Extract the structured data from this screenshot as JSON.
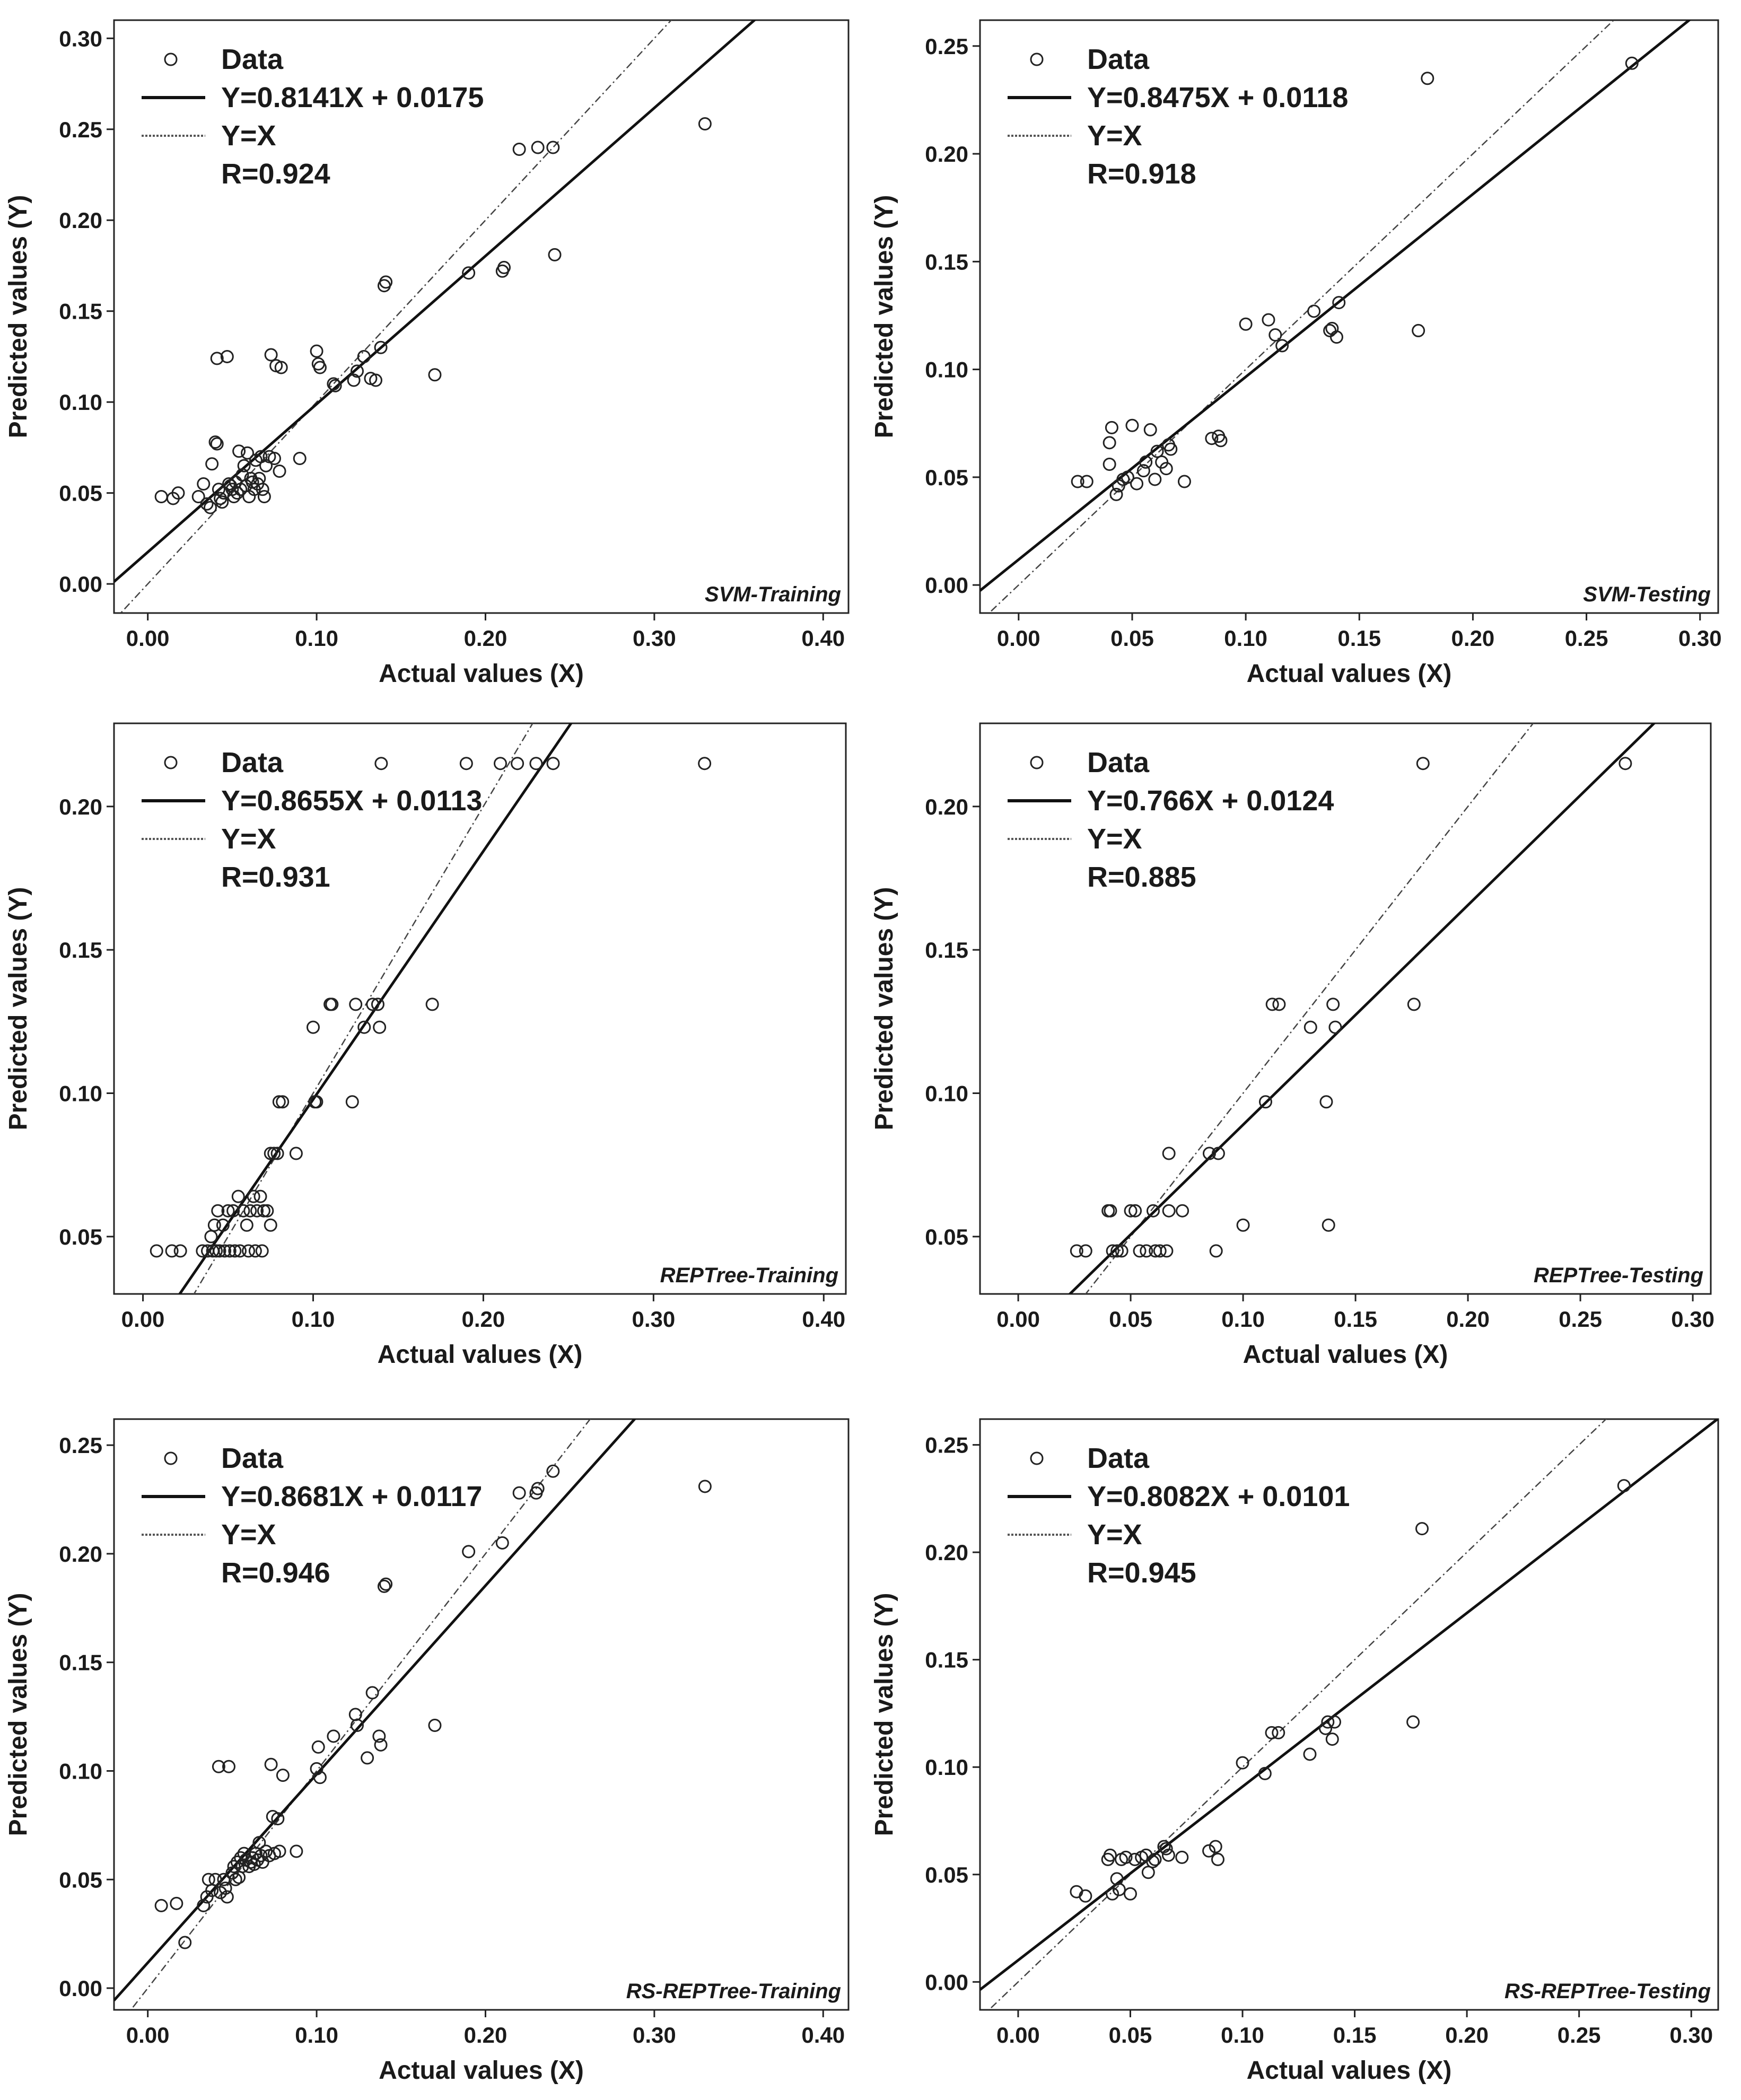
{
  "chart_data": [
    {
      "type": "scatter",
      "title": "SVM-Training",
      "xlabel": "Actual values (X)",
      "ylabel": "Predicted values (Y)",
      "xlim": [
        -0.02,
        0.415
      ],
      "ylim": [
        -0.016,
        0.31
      ],
      "xticks": [
        0.0,
        0.1,
        0.2,
        0.3,
        0.4
      ],
      "yticks": [
        0.0,
        0.05,
        0.1,
        0.15,
        0.2,
        0.25,
        0.3
      ],
      "fit": {
        "slope": 0.8141,
        "intercept": 0.0175
      },
      "legend": {
        "data": "Data",
        "fit": "Y=0.8141X + 0.0175",
        "identity": "Y=X",
        "r": "R=0.924"
      },
      "points": [
        [
          0.008,
          0.048
        ],
        [
          0.015,
          0.047
        ],
        [
          0.018,
          0.05
        ],
        [
          0.03,
          0.048
        ],
        [
          0.033,
          0.055
        ],
        [
          0.035,
          0.044
        ],
        [
          0.037,
          0.042
        ],
        [
          0.038,
          0.066
        ],
        [
          0.04,
          0.078
        ],
        [
          0.041,
          0.077
        ],
        [
          0.041,
          0.124
        ],
        [
          0.042,
          0.052
        ],
        [
          0.043,
          0.047
        ],
        [
          0.044,
          0.045
        ],
        [
          0.045,
          0.05
        ],
        [
          0.047,
          0.125
        ],
        [
          0.048,
          0.055
        ],
        [
          0.049,
          0.054
        ],
        [
          0.05,
          0.052
        ],
        [
          0.051,
          0.048
        ],
        [
          0.052,
          0.056
        ],
        [
          0.053,
          0.05
        ],
        [
          0.054,
          0.073
        ],
        [
          0.055,
          0.052
        ],
        [
          0.056,
          0.06
        ],
        [
          0.057,
          0.065
        ],
        [
          0.058,
          0.054
        ],
        [
          0.059,
          0.072
        ],
        [
          0.06,
          0.048
        ],
        [
          0.061,
          0.058
        ],
        [
          0.062,
          0.056
        ],
        [
          0.063,
          0.052
        ],
        [
          0.064,
          0.068
        ],
        [
          0.065,
          0.055
        ],
        [
          0.066,
          0.058
        ],
        [
          0.067,
          0.07
        ],
        [
          0.068,
          0.052
        ],
        [
          0.069,
          0.048
        ],
        [
          0.07,
          0.065
        ],
        [
          0.072,
          0.07
        ],
        [
          0.073,
          0.126
        ],
        [
          0.075,
          0.069
        ],
        [
          0.076,
          0.12
        ],
        [
          0.078,
          0.062
        ],
        [
          0.079,
          0.119
        ],
        [
          0.09,
          0.069
        ],
        [
          0.1,
          0.128
        ],
        [
          0.101,
          0.121
        ],
        [
          0.102,
          0.119
        ],
        [
          0.11,
          0.11
        ],
        [
          0.111,
          0.109
        ],
        [
          0.122,
          0.112
        ],
        [
          0.124,
          0.117
        ],
        [
          0.128,
          0.125
        ],
        [
          0.132,
          0.113
        ],
        [
          0.135,
          0.112
        ],
        [
          0.138,
          0.13
        ],
        [
          0.14,
          0.164
        ],
        [
          0.141,
          0.166
        ],
        [
          0.17,
          0.115
        ],
        [
          0.19,
          0.171
        ],
        [
          0.21,
          0.172
        ],
        [
          0.211,
          0.174
        ],
        [
          0.22,
          0.239
        ],
        [
          0.231,
          0.24
        ],
        [
          0.24,
          0.24
        ],
        [
          0.241,
          0.181
        ],
        [
          0.33,
          0.253
        ]
      ]
    },
    {
      "type": "scatter",
      "title": "SVM-Testing",
      "xlabel": "Actual values (X)",
      "ylabel": "Predicted values (Y)",
      "xlim": [
        -0.017,
        0.308
      ],
      "ylim": [
        -0.013,
        0.262
      ],
      "xticks": [
        0.0,
        0.05,
        0.1,
        0.15,
        0.2,
        0.25,
        0.3
      ],
      "yticks": [
        0.0,
        0.05,
        0.1,
        0.15,
        0.2,
        0.25
      ],
      "fit": {
        "slope": 0.8475,
        "intercept": 0.0118
      },
      "legend": {
        "data": "Data",
        "fit": "Y=0.8475X + 0.0118",
        "identity": "Y=X",
        "r": "R=0.918"
      },
      "points": [
        [
          0.026,
          0.048
        ],
        [
          0.03,
          0.048
        ],
        [
          0.04,
          0.066
        ],
        [
          0.041,
          0.073
        ],
        [
          0.04,
          0.056
        ],
        [
          0.043,
          0.042
        ],
        [
          0.044,
          0.046
        ],
        [
          0.046,
          0.049
        ],
        [
          0.048,
          0.05
        ],
        [
          0.05,
          0.074
        ],
        [
          0.052,
          0.047
        ],
        [
          0.055,
          0.053
        ],
        [
          0.056,
          0.057
        ],
        [
          0.058,
          0.072
        ],
        [
          0.06,
          0.049
        ],
        [
          0.061,
          0.062
        ],
        [
          0.063,
          0.057
        ],
        [
          0.065,
          0.054
        ],
        [
          0.066,
          0.065
        ],
        [
          0.067,
          0.063
        ],
        [
          0.073,
          0.048
        ],
        [
          0.085,
          0.068
        ],
        [
          0.088,
          0.069
        ],
        [
          0.089,
          0.067
        ],
        [
          0.1,
          0.121
        ],
        [
          0.11,
          0.123
        ],
        [
          0.113,
          0.116
        ],
        [
          0.116,
          0.111
        ],
        [
          0.13,
          0.127
        ],
        [
          0.137,
          0.118
        ],
        [
          0.138,
          0.119
        ],
        [
          0.14,
          0.115
        ],
        [
          0.141,
          0.131
        ],
        [
          0.176,
          0.118
        ],
        [
          0.18,
          0.235
        ],
        [
          0.27,
          0.242
        ]
      ]
    },
    {
      "type": "scatter",
      "title": "REPTree-Training",
      "xlabel": "Actual values (X)",
      "ylabel": "Predicted values (Y)",
      "xlim": [
        -0.017,
        0.413
      ],
      "ylim": [
        0.03,
        0.229
      ],
      "xticks": [
        0.0,
        0.1,
        0.2,
        0.3,
        0.4
      ],
      "yticks": [
        0.05,
        0.1,
        0.15,
        0.2
      ],
      "fit": {
        "slope": 0.8655,
        "intercept": 0.0113
      },
      "legend": {
        "data": "Data",
        "fit": "Y=0.8655X + 0.0113",
        "identity": "Y=X",
        "r": "R=0.931"
      },
      "points": [
        [
          0.008,
          0.045
        ],
        [
          0.017,
          0.045
        ],
        [
          0.022,
          0.045
        ],
        [
          0.035,
          0.045
        ],
        [
          0.038,
          0.045
        ],
        [
          0.041,
          0.045
        ],
        [
          0.043,
          0.045
        ],
        [
          0.045,
          0.045
        ],
        [
          0.048,
          0.045
        ],
        [
          0.051,
          0.045
        ],
        [
          0.054,
          0.045
        ],
        [
          0.057,
          0.045
        ],
        [
          0.062,
          0.045
        ],
        [
          0.066,
          0.045
        ],
        [
          0.07,
          0.045
        ],
        [
          0.04,
          0.05
        ],
        [
          0.042,
          0.054
        ],
        [
          0.044,
          0.059
        ],
        [
          0.047,
          0.054
        ],
        [
          0.05,
          0.059
        ],
        [
          0.053,
          0.059
        ],
        [
          0.056,
          0.064
        ],
        [
          0.059,
          0.059
        ],
        [
          0.061,
          0.054
        ],
        [
          0.063,
          0.059
        ],
        [
          0.065,
          0.064
        ],
        [
          0.067,
          0.059
        ],
        [
          0.069,
          0.064
        ],
        [
          0.071,
          0.059
        ],
        [
          0.073,
          0.059
        ],
        [
          0.075,
          0.054
        ],
        [
          0.075,
          0.079
        ],
        [
          0.077,
          0.079
        ],
        [
          0.079,
          0.079
        ],
        [
          0.08,
          0.097
        ],
        [
          0.082,
          0.097
        ],
        [
          0.09,
          0.079
        ],
        [
          0.1,
          0.123
        ],
        [
          0.101,
          0.097
        ],
        [
          0.102,
          0.097
        ],
        [
          0.11,
          0.131
        ],
        [
          0.111,
          0.131
        ],
        [
          0.123,
          0.097
        ],
        [
          0.125,
          0.131
        ],
        [
          0.13,
          0.123
        ],
        [
          0.135,
          0.131
        ],
        [
          0.138,
          0.131
        ],
        [
          0.139,
          0.123
        ],
        [
          0.14,
          0.215
        ],
        [
          0.17,
          0.131
        ],
        [
          0.19,
          0.215
        ],
        [
          0.21,
          0.215
        ],
        [
          0.22,
          0.215
        ],
        [
          0.231,
          0.215
        ],
        [
          0.241,
          0.215
        ],
        [
          0.33,
          0.215
        ]
      ]
    },
    {
      "type": "scatter",
      "title": "REPTree-Testing",
      "xlabel": "Actual values (X)",
      "ylabel": "Predicted values (Y)",
      "xlim": [
        -0.017,
        0.308
      ],
      "ylim": [
        0.03,
        0.229
      ],
      "xticks": [
        0.0,
        0.05,
        0.1,
        0.15,
        0.2,
        0.25,
        0.3
      ],
      "yticks": [
        0.05,
        0.1,
        0.15,
        0.2
      ],
      "fit": {
        "slope": 0.766,
        "intercept": 0.0124
      },
      "legend": {
        "data": "Data",
        "fit": "Y=0.766X + 0.0124",
        "identity": "Y=X",
        "r": "R=0.885"
      },
      "points": [
        [
          0.026,
          0.045
        ],
        [
          0.03,
          0.045
        ],
        [
          0.04,
          0.059
        ],
        [
          0.041,
          0.059
        ],
        [
          0.042,
          0.045
        ],
        [
          0.044,
          0.045
        ],
        [
          0.046,
          0.045
        ],
        [
          0.05,
          0.059
        ],
        [
          0.052,
          0.059
        ],
        [
          0.054,
          0.045
        ],
        [
          0.057,
          0.045
        ],
        [
          0.06,
          0.059
        ],
        [
          0.061,
          0.045
        ],
        [
          0.063,
          0.045
        ],
        [
          0.066,
          0.045
        ],
        [
          0.067,
          0.079
        ],
        [
          0.067,
          0.059
        ],
        [
          0.073,
          0.059
        ],
        [
          0.085,
          0.079
        ],
        [
          0.088,
          0.045
        ],
        [
          0.089,
          0.079
        ],
        [
          0.1,
          0.054
        ],
        [
          0.11,
          0.097
        ],
        [
          0.113,
          0.131
        ],
        [
          0.116,
          0.131
        ],
        [
          0.13,
          0.123
        ],
        [
          0.137,
          0.097
        ],
        [
          0.138,
          0.054
        ],
        [
          0.14,
          0.131
        ],
        [
          0.141,
          0.123
        ],
        [
          0.176,
          0.131
        ],
        [
          0.18,
          0.215
        ],
        [
          0.27,
          0.215
        ]
      ]
    },
    {
      "type": "scatter",
      "title": "RS-REPTree-Training",
      "xlabel": "Actual values (X)",
      "ylabel": "Predicted values (Y)",
      "xlim": [
        -0.02,
        0.415
      ],
      "ylim": [
        -0.01,
        0.262
      ],
      "xticks": [
        0.0,
        0.1,
        0.2,
        0.3,
        0.4
      ],
      "yticks": [
        0.0,
        0.05,
        0.1,
        0.15,
        0.2,
        0.25
      ],
      "fit": {
        "slope": 0.8681,
        "intercept": 0.0117
      },
      "legend": {
        "data": "Data",
        "fit": "Y=0.8681X + 0.0117",
        "identity": "Y=X",
        "r": "R=0.946"
      },
      "points": [
        [
          0.008,
          0.038
        ],
        [
          0.017,
          0.039
        ],
        [
          0.022,
          0.021
        ],
        [
          0.033,
          0.038
        ],
        [
          0.035,
          0.042
        ],
        [
          0.036,
          0.05
        ],
        [
          0.038,
          0.045
        ],
        [
          0.04,
          0.05
        ],
        [
          0.042,
          0.102
        ],
        [
          0.043,
          0.044
        ],
        [
          0.045,
          0.05
        ],
        [
          0.046,
          0.046
        ],
        [
          0.047,
          0.042
        ],
        [
          0.048,
          0.102
        ],
        [
          0.05,
          0.053
        ],
        [
          0.051,
          0.056
        ],
        [
          0.052,
          0.05
        ],
        [
          0.053,
          0.058
        ],
        [
          0.054,
          0.051
        ],
        [
          0.055,
          0.06
        ],
        [
          0.056,
          0.056
        ],
        [
          0.057,
          0.062
        ],
        [
          0.058,
          0.059
        ],
        [
          0.06,
          0.056
        ],
        [
          0.061,
          0.058
        ],
        [
          0.062,
          0.06
        ],
        [
          0.063,
          0.057
        ],
        [
          0.064,
          0.062
        ],
        [
          0.065,
          0.059
        ],
        [
          0.066,
          0.067
        ],
        [
          0.067,
          0.061
        ],
        [
          0.068,
          0.058
        ],
        [
          0.07,
          0.063
        ],
        [
          0.072,
          0.061
        ],
        [
          0.073,
          0.103
        ],
        [
          0.074,
          0.079
        ],
        [
          0.075,
          0.062
        ],
        [
          0.077,
          0.078
        ],
        [
          0.078,
          0.063
        ],
        [
          0.08,
          0.098
        ],
        [
          0.088,
          0.063
        ],
        [
          0.1,
          0.101
        ],
        [
          0.101,
          0.111
        ],
        [
          0.102,
          0.097
        ],
        [
          0.11,
          0.116
        ],
        [
          0.123,
          0.126
        ],
        [
          0.124,
          0.121
        ],
        [
          0.13,
          0.106
        ],
        [
          0.133,
          0.136
        ],
        [
          0.137,
          0.116
        ],
        [
          0.138,
          0.112
        ],
        [
          0.14,
          0.185
        ],
        [
          0.141,
          0.186
        ],
        [
          0.17,
          0.121
        ],
        [
          0.19,
          0.201
        ],
        [
          0.21,
          0.205
        ],
        [
          0.22,
          0.228
        ],
        [
          0.23,
          0.228
        ],
        [
          0.231,
          0.23
        ],
        [
          0.24,
          0.238
        ],
        [
          0.33,
          0.231
        ]
      ]
    },
    {
      "type": "scatter",
      "title": "RS-REPTree-Testing",
      "xlabel": "Actual values (X)",
      "ylabel": "Predicted values (Y)",
      "xlim": [
        -0.017,
        0.312
      ],
      "ylim": [
        -0.013,
        0.262
      ],
      "xticks": [
        0.0,
        0.05,
        0.1,
        0.15,
        0.2,
        0.25,
        0.3
      ],
      "yticks": [
        0.0,
        0.05,
        0.1,
        0.15,
        0.2,
        0.25
      ],
      "fit": {
        "slope": 0.8082,
        "intercept": 0.0101
      },
      "legend": {
        "data": "Data",
        "fit": "Y=0.8082X + 0.0101",
        "identity": "Y=X",
        "r": "R=0.945"
      },
      "points": [
        [
          0.026,
          0.042
        ],
        [
          0.03,
          0.04
        ],
        [
          0.04,
          0.057
        ],
        [
          0.041,
          0.059
        ],
        [
          0.042,
          0.041
        ],
        [
          0.044,
          0.048
        ],
        [
          0.045,
          0.043
        ],
        [
          0.046,
          0.057
        ],
        [
          0.048,
          0.058
        ],
        [
          0.05,
          0.041
        ],
        [
          0.052,
          0.057
        ],
        [
          0.055,
          0.058
        ],
        [
          0.057,
          0.059
        ],
        [
          0.058,
          0.051
        ],
        [
          0.06,
          0.056
        ],
        [
          0.061,
          0.057
        ],
        [
          0.065,
          0.063
        ],
        [
          0.066,
          0.062
        ],
        [
          0.067,
          0.059
        ],
        [
          0.073,
          0.058
        ],
        [
          0.085,
          0.061
        ],
        [
          0.088,
          0.063
        ],
        [
          0.089,
          0.057
        ],
        [
          0.1,
          0.102
        ],
        [
          0.11,
          0.097
        ],
        [
          0.113,
          0.116
        ],
        [
          0.116,
          0.116
        ],
        [
          0.13,
          0.106
        ],
        [
          0.137,
          0.118
        ],
        [
          0.138,
          0.121
        ],
        [
          0.14,
          0.113
        ],
        [
          0.141,
          0.121
        ],
        [
          0.176,
          0.121
        ],
        [
          0.18,
          0.211
        ],
        [
          0.27,
          0.231
        ]
      ]
    }
  ]
}
